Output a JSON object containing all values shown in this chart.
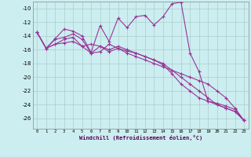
{
  "xlabel": "Windchill (Refroidissement éolien,°C)",
  "bg_color": "#cceef0",
  "line_color": "#993399",
  "xlim": [
    -0.5,
    23.5
  ],
  "ylim": [
    -27.5,
    -9.0
  ],
  "yticks": [
    -10,
    -12,
    -14,
    -16,
    -18,
    -20,
    -22,
    -24,
    -26
  ],
  "xtick_labels": [
    "0",
    "1",
    "2",
    "3",
    "4",
    "5",
    "6",
    "7",
    "8",
    "9",
    "10",
    "11",
    "12",
    "13",
    "14",
    "15",
    "16",
    "17",
    "18",
    "19",
    "20",
    "21",
    "22",
    "23"
  ],
  "series": [
    {
      "x": [
        0,
        1,
        2,
        3,
        4,
        5,
        6,
        7,
        8,
        9,
        10,
        11,
        12,
        13,
        14,
        15,
        16,
        17,
        18,
        19,
        20,
        21,
        22,
        23
      ],
      "y": [
        -13.5,
        -15.8,
        -14.4,
        -13.0,
        -13.3,
        -14.0,
        -16.4,
        -12.5,
        -14.8,
        -11.4,
        -12.8,
        -11.2,
        -11.0,
        -12.4,
        -11.2,
        -9.3,
        -9.1,
        -16.5,
        -19.2,
        -23.5,
        -23.8,
        -24.2,
        -24.7,
        -26.3
      ]
    },
    {
      "x": [
        0,
        1,
        2,
        3,
        4,
        5,
        6,
        7,
        8,
        9,
        10,
        11,
        12,
        13,
        14,
        15,
        16,
        17,
        18,
        19,
        20,
        21,
        22,
        23
      ],
      "y": [
        -13.5,
        -15.8,
        -15.2,
        -14.5,
        -14.2,
        -15.5,
        -15.2,
        -15.5,
        -16.0,
        -15.5,
        -16.0,
        -16.5,
        -17.0,
        -17.5,
        -18.0,
        -19.0,
        -20.0,
        -21.0,
        -22.0,
        -23.0,
        -24.0,
        -24.5,
        -25.0,
        -26.3
      ]
    },
    {
      "x": [
        0,
        1,
        2,
        3,
        4,
        5,
        6,
        7,
        8,
        9,
        10,
        11,
        12,
        13,
        14,
        15,
        16,
        17,
        18,
        19,
        20,
        21,
        22,
        23
      ],
      "y": [
        -13.5,
        -15.8,
        -14.5,
        -14.2,
        -13.7,
        -14.5,
        -16.5,
        -16.3,
        -15.2,
        -15.8,
        -16.2,
        -16.5,
        -17.0,
        -17.5,
        -18.2,
        -19.5,
        -21.0,
        -22.0,
        -23.0,
        -23.5,
        -24.0,
        -24.5,
        -25.0,
        -26.3
      ]
    },
    {
      "x": [
        0,
        1,
        2,
        3,
        4,
        5,
        6,
        7,
        8,
        9,
        10,
        11,
        12,
        13,
        14,
        15,
        16,
        17,
        18,
        19,
        20,
        21,
        22,
        23
      ],
      "y": [
        -13.5,
        -15.8,
        -15.2,
        -15.0,
        -14.8,
        -15.5,
        -16.5,
        -15.5,
        -16.3,
        -15.8,
        -16.5,
        -17.0,
        -17.5,
        -18.0,
        -18.5,
        -19.0,
        -19.5,
        -20.0,
        -20.5,
        -21.0,
        -22.0,
        -23.0,
        -24.5,
        -26.3
      ]
    }
  ]
}
